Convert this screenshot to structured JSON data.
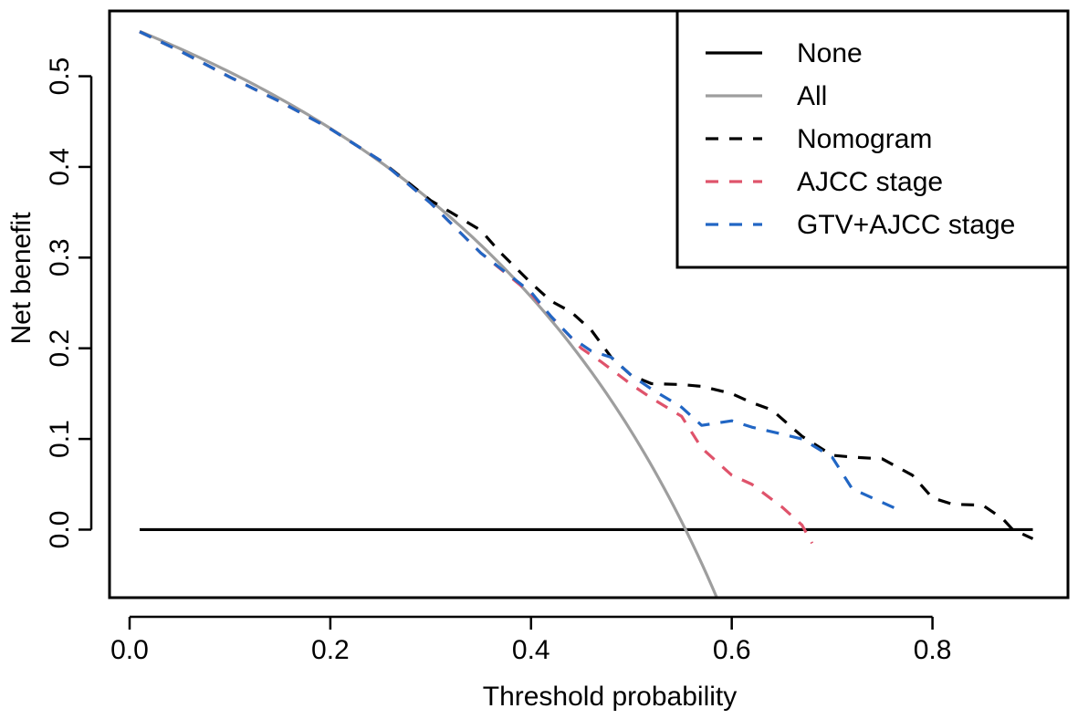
{
  "chart_data": {
    "type": "line",
    "title": "",
    "xlabel": "Threshold probability",
    "ylabel": "Net benefit",
    "xlim": [
      -0.02,
      0.935
    ],
    "ylim": [
      -0.075,
      0.572
    ],
    "x_ticks": [
      0.0,
      0.2,
      0.4,
      0.6,
      0.8
    ],
    "x_tick_labels": [
      "0.0",
      "0.2",
      "0.4",
      "0.6",
      "0.8"
    ],
    "y_ticks": [
      0.0,
      0.1,
      0.2,
      0.3,
      0.4,
      0.5
    ],
    "y_tick_labels": [
      "0.0",
      "0.1",
      "0.2",
      "0.3",
      "0.4",
      "0.5"
    ],
    "legend_position": "top-right",
    "series": [
      {
        "name": "None",
        "color": "#000000",
        "dash": "solid",
        "x": [
          0.01,
          0.9
        ],
        "y": [
          0.0,
          0.0
        ]
      },
      {
        "name": "All",
        "color": "#9e9e9e",
        "dash": "solid",
        "prevalence": 0.554,
        "x_range": [
          0.01,
          0.585
        ]
      },
      {
        "name": "Nomogram",
        "color": "#000000",
        "dash": "dashed",
        "x": [
          0.01,
          0.05,
          0.1,
          0.15,
          0.2,
          0.25,
          0.3,
          0.32,
          0.35,
          0.37,
          0.4,
          0.42,
          0.44,
          0.46,
          0.48,
          0.5,
          0.52,
          0.55,
          0.57,
          0.6,
          0.62,
          0.64,
          0.67,
          0.7,
          0.72,
          0.75,
          0.78,
          0.8,
          0.82,
          0.85,
          0.87,
          0.88,
          0.9
        ],
        "y": [
          0.549,
          0.528,
          0.499,
          0.472,
          0.442,
          0.407,
          0.363,
          0.35,
          0.33,
          0.305,
          0.272,
          0.252,
          0.24,
          0.22,
          0.19,
          0.17,
          0.161,
          0.16,
          0.158,
          0.15,
          0.14,
          0.132,
          0.103,
          0.082,
          0.08,
          0.078,
          0.06,
          0.035,
          0.028,
          0.027,
          0.012,
          0.0,
          -0.01
        ]
      },
      {
        "name": "AJCC stage",
        "color": "#df536b",
        "dash": "dashed",
        "x": [
          0.01,
          0.05,
          0.1,
          0.15,
          0.2,
          0.25,
          0.3,
          0.35,
          0.4,
          0.42,
          0.45,
          0.47,
          0.5,
          0.52,
          0.55,
          0.57,
          0.6,
          0.62,
          0.65,
          0.67,
          0.68
        ],
        "y": [
          0.549,
          0.528,
          0.499,
          0.472,
          0.442,
          0.407,
          0.36,
          0.305,
          0.26,
          0.235,
          0.2,
          0.185,
          0.16,
          0.145,
          0.125,
          0.09,
          0.06,
          0.05,
          0.025,
          0.005,
          -0.015
        ]
      },
      {
        "name": "GTV+AJCC stage",
        "color": "#2166c4",
        "dash": "dashed",
        "x": [
          0.01,
          0.05,
          0.1,
          0.15,
          0.2,
          0.25,
          0.3,
          0.35,
          0.4,
          0.42,
          0.44,
          0.46,
          0.48,
          0.5,
          0.52,
          0.55,
          0.57,
          0.6,
          0.62,
          0.64,
          0.67,
          0.7,
          0.72,
          0.74,
          0.77
        ],
        "y": [
          0.549,
          0.528,
          0.499,
          0.472,
          0.442,
          0.407,
          0.36,
          0.305,
          0.262,
          0.235,
          0.212,
          0.197,
          0.19,
          0.17,
          0.155,
          0.135,
          0.115,
          0.12,
          0.113,
          0.108,
          0.1,
          0.08,
          0.045,
          0.035,
          0.02
        ]
      }
    ]
  }
}
